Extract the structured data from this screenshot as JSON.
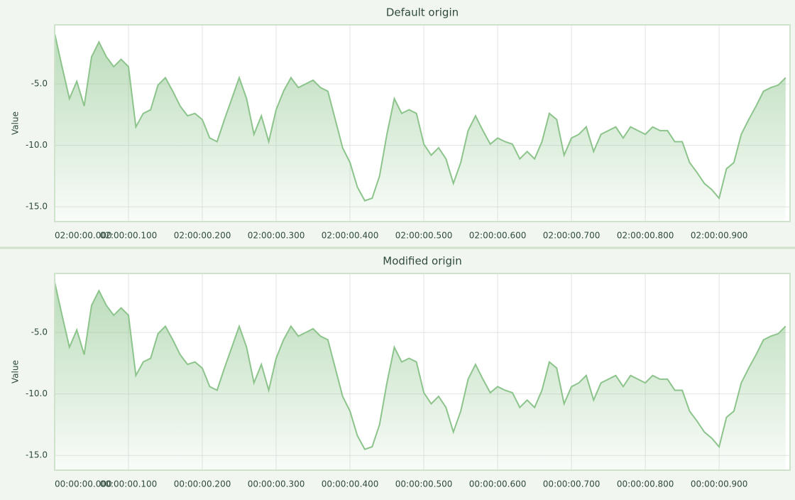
{
  "chart_data": [
    {
      "type": "area",
      "title": "Default origin",
      "y_label": "Value",
      "color": "#8cc48c",
      "x": [
        "02:00:00.000",
        "02:00:00.010",
        "02:00:00.020",
        "02:00:00.030",
        "02:00:00.040",
        "02:00:00.050",
        "02:00:00.060",
        "02:00:00.070",
        "02:00:00.080",
        "02:00:00.090",
        "02:00:00.100",
        "02:00:00.110",
        "02:00:00.120",
        "02:00:00.130",
        "02:00:00.140",
        "02:00:00.150",
        "02:00:00.160",
        "02:00:00.170",
        "02:00:00.180",
        "02:00:00.190",
        "02:00:00.200",
        "02:00:00.210",
        "02:00:00.220",
        "02:00:00.230",
        "02:00:00.240",
        "02:00:00.250",
        "02:00:00.260",
        "02:00:00.270",
        "02:00:00.280",
        "02:00:00.290",
        "02:00:00.300",
        "02:00:00.310",
        "02:00:00.320",
        "02:00:00.330",
        "02:00:00.340",
        "02:00:00.350",
        "02:00:00.360",
        "02:00:00.370",
        "02:00:00.380",
        "02:00:00.390",
        "02:00:00.400",
        "02:00:00.410",
        "02:00:00.420",
        "02:00:00.430",
        "02:00:00.440",
        "02:00:00.450",
        "02:00:00.460",
        "02:00:00.470",
        "02:00:00.480",
        "02:00:00.490",
        "02:00:00.500",
        "02:00:00.510",
        "02:00:00.520",
        "02:00:00.530",
        "02:00:00.540",
        "02:00:00.550",
        "02:00:00.560",
        "02:00:00.570",
        "02:00:00.580",
        "02:00:00.590",
        "02:00:00.600",
        "02:00:00.610",
        "02:00:00.620",
        "02:00:00.630",
        "02:00:00.640",
        "02:00:00.650",
        "02:00:00.660",
        "02:00:00.670",
        "02:00:00.680",
        "02:00:00.690",
        "02:00:00.700",
        "02:00:00.710",
        "02:00:00.720",
        "02:00:00.730",
        "02:00:00.740",
        "02:00:00.750",
        "02:00:00.760",
        "02:00:00.770",
        "02:00:00.780",
        "02:00:00.790",
        "02:00:00.800",
        "02:00:00.810",
        "02:00:00.820",
        "02:00:00.830",
        "02:00:00.840",
        "02:00:00.850",
        "02:00:00.860",
        "02:00:00.870",
        "02:00:00.880",
        "02:00:00.890",
        "02:00:00.900",
        "02:00:00.910",
        "02:00:00.920",
        "02:00:00.930",
        "02:00:00.940",
        "02:00:00.950",
        "02:00:00.960",
        "02:00:00.970",
        "02:00:00.980",
        "02:00:00.990"
      ],
      "values": [
        -0.9,
        -3.6,
        -6.2,
        -4.8,
        -6.8,
        -2.8,
        -1.6,
        -2.8,
        -3.6,
        -3.0,
        -3.6,
        -8.5,
        -7.4,
        -7.1,
        -5.1,
        -4.5,
        -5.6,
        -6.8,
        -7.6,
        -7.4,
        -7.9,
        -9.4,
        -9.7,
        -7.9,
        -6.2,
        -4.5,
        -6.2,
        -9.1,
        -7.6,
        -9.7,
        -7.1,
        -5.6,
        -4.5,
        -5.3,
        -5.0,
        -4.7,
        -5.3,
        -5.6,
        -7.9,
        -10.2,
        -11.4,
        -13.4,
        -14.5,
        -14.3,
        -12.5,
        -9.1,
        -6.2,
        -7.4,
        -7.1,
        -7.4,
        -9.9,
        -10.8,
        -10.2,
        -11.1,
        -13.1,
        -11.4,
        -8.8,
        -7.6,
        -8.8,
        -9.9,
        -9.4,
        -9.7,
        -9.9,
        -11.1,
        -10.5,
        -11.1,
        -9.7,
        -7.4,
        -7.9,
        -10.8,
        -9.4,
        -9.1,
        -8.5,
        -10.5,
        -9.1,
        -8.8,
        -8.5,
        -9.4,
        -8.5,
        -8.8,
        -9.1,
        -8.5,
        -8.8,
        -8.8,
        -9.7,
        -9.7,
        -11.4,
        -12.2,
        -13.1,
        -13.6,
        -14.3,
        -11.9,
        -11.4,
        -9.1,
        -7.9,
        -6.8,
        -5.6,
        -5.3,
        -5.1,
        -4.5
      ],
      "xlim": [
        "02:00:00.000",
        "02:00:00.996"
      ],
      "xticks": [
        "02:00:00.000",
        "02:00:00.100",
        "02:00:00.200",
        "02:00:00.300",
        "02:00:00.400",
        "02:00:00.500",
        "02:00:00.600",
        "02:00:00.700",
        "02:00:00.800",
        "02:00:00.900"
      ],
      "ylim": [
        -16.2,
        -0.2
      ],
      "yticks": [
        {
          "value": -5,
          "label": "-5.0"
        },
        {
          "value": -10,
          "label": "-10.0"
        },
        {
          "value": -15,
          "label": "-15.0"
        }
      ],
      "grid": true
    },
    {
      "type": "area",
      "title": "Modified origin",
      "y_label": "Value",
      "color": "#8cc48c",
      "x": [
        "00:00:00.000",
        "00:00:00.010",
        "00:00:00.020",
        "00:00:00.030",
        "00:00:00.040",
        "00:00:00.050",
        "00:00:00.060",
        "00:00:00.070",
        "00:00:00.080",
        "00:00:00.090",
        "00:00:00.100",
        "00:00:00.110",
        "00:00:00.120",
        "00:00:00.130",
        "00:00:00.140",
        "00:00:00.150",
        "00:00:00.160",
        "00:00:00.170",
        "00:00:00.180",
        "00:00:00.190",
        "00:00:00.200",
        "00:00:00.210",
        "00:00:00.220",
        "00:00:00.230",
        "00:00:00.240",
        "00:00:00.250",
        "00:00:00.260",
        "00:00:00.270",
        "00:00:00.280",
        "00:00:00.290",
        "00:00:00.300",
        "00:00:00.310",
        "00:00:00.320",
        "00:00:00.330",
        "00:00:00.340",
        "00:00:00.350",
        "00:00:00.360",
        "00:00:00.370",
        "00:00:00.380",
        "00:00:00.390",
        "00:00:00.400",
        "00:00:00.410",
        "00:00:00.420",
        "00:00:00.430",
        "00:00:00.440",
        "00:00:00.450",
        "00:00:00.460",
        "00:00:00.470",
        "00:00:00.480",
        "00:00:00.490",
        "00:00:00.500",
        "00:00:00.510",
        "00:00:00.520",
        "00:00:00.530",
        "00:00:00.540",
        "00:00:00.550",
        "00:00:00.560",
        "00:00:00.570",
        "00:00:00.580",
        "00:00:00.590",
        "00:00:00.600",
        "00:00:00.610",
        "00:00:00.620",
        "00:00:00.630",
        "00:00:00.640",
        "00:00:00.650",
        "00:00:00.660",
        "00:00:00.670",
        "00:00:00.680",
        "00:00:00.690",
        "00:00:00.700",
        "00:00:00.710",
        "00:00:00.720",
        "00:00:00.730",
        "00:00:00.740",
        "00:00:00.750",
        "00:00:00.760",
        "00:00:00.770",
        "00:00:00.780",
        "00:00:00.790",
        "00:00:00.800",
        "00:00:00.810",
        "00:00:00.820",
        "00:00:00.830",
        "00:00:00.840",
        "00:00:00.850",
        "00:00:00.860",
        "00:00:00.870",
        "00:00:00.880",
        "00:00:00.890",
        "00:00:00.900",
        "00:00:00.910",
        "00:00:00.920",
        "00:00:00.930",
        "00:00:00.940",
        "00:00:00.950",
        "00:00:00.960",
        "00:00:00.970",
        "00:00:00.980",
        "00:00:00.990"
      ],
      "values": [
        -0.9,
        -3.6,
        -6.2,
        -4.8,
        -6.8,
        -2.8,
        -1.6,
        -2.8,
        -3.6,
        -3.0,
        -3.6,
        -8.5,
        -7.4,
        -7.1,
        -5.1,
        -4.5,
        -5.6,
        -6.8,
        -7.6,
        -7.4,
        -7.9,
        -9.4,
        -9.7,
        -7.9,
        -6.2,
        -4.5,
        -6.2,
        -9.1,
        -7.6,
        -9.7,
        -7.1,
        -5.6,
        -4.5,
        -5.3,
        -5.0,
        -4.7,
        -5.3,
        -5.6,
        -7.9,
        -10.2,
        -11.4,
        -13.4,
        -14.5,
        -14.3,
        -12.5,
        -9.1,
        -6.2,
        -7.4,
        -7.1,
        -7.4,
        -9.9,
        -10.8,
        -10.2,
        -11.1,
        -13.1,
        -11.4,
        -8.8,
        -7.6,
        -8.8,
        -9.9,
        -9.4,
        -9.7,
        -9.9,
        -11.1,
        -10.5,
        -11.1,
        -9.7,
        -7.4,
        -7.9,
        -10.8,
        -9.4,
        -9.1,
        -8.5,
        -10.5,
        -9.1,
        -8.8,
        -8.5,
        -9.4,
        -8.5,
        -8.8,
        -9.1,
        -8.5,
        -8.8,
        -8.8,
        -9.7,
        -9.7,
        -11.4,
        -12.2,
        -13.1,
        -13.6,
        -14.3,
        -11.9,
        -11.4,
        -9.1,
        -7.9,
        -6.8,
        -5.6,
        -5.3,
        -5.1,
        -4.5
      ],
      "xlim": [
        "00:00:00.000",
        "00:00:00.996"
      ],
      "xticks": [
        "00:00:00.000",
        "00:00:00.100",
        "00:00:00.200",
        "00:00:00.300",
        "00:00:00.400",
        "00:00:00.500",
        "00:00:00.600",
        "00:00:00.700",
        "00:00:00.800",
        "00:00:00.900"
      ],
      "ylim": [
        -16.2,
        -0.2
      ],
      "yticks": [
        {
          "value": -5,
          "label": "-5.0"
        },
        {
          "value": -10,
          "label": "-10.0"
        },
        {
          "value": -15,
          "label": "-15.0"
        }
      ],
      "grid": true
    }
  ]
}
